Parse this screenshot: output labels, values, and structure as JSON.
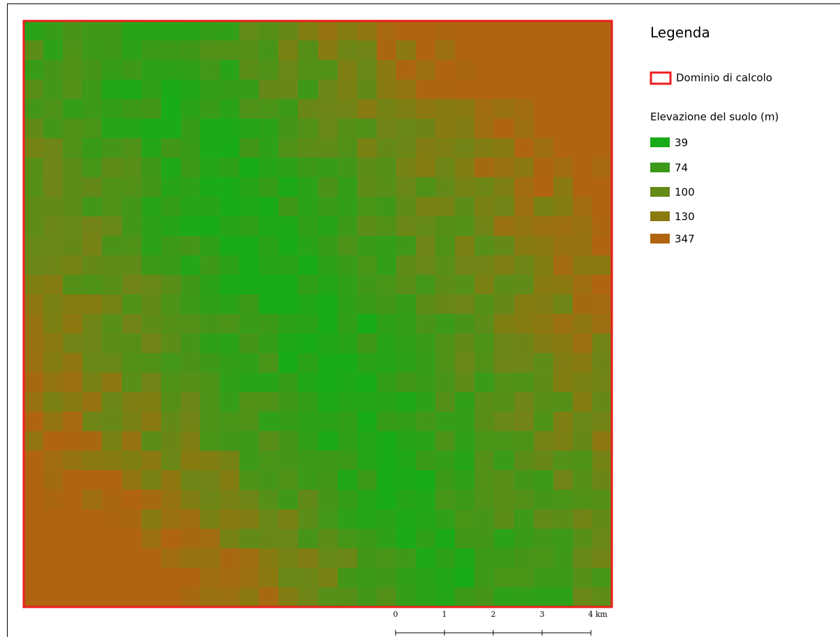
{
  "legend": {
    "title": "Legenda",
    "domain": {
      "label": "Dominio di calcolo",
      "color": "#ee1c1c"
    },
    "elevation": {
      "title": "Elevazione del suolo (m)",
      "items": [
        {
          "label": "39",
          "color": "#1aab1a"
        },
        {
          "label": "74",
          "color": "#3b9a18"
        },
        {
          "label": "100",
          "color": "#638a18"
        },
        {
          "label": "130",
          "color": "#8a7a10"
        },
        {
          "label": "347",
          "color": "#b06410"
        }
      ]
    }
  },
  "scale_bar": {
    "labels": [
      "0",
      "1",
      "2",
      "3",
      "4 km"
    ]
  }
}
